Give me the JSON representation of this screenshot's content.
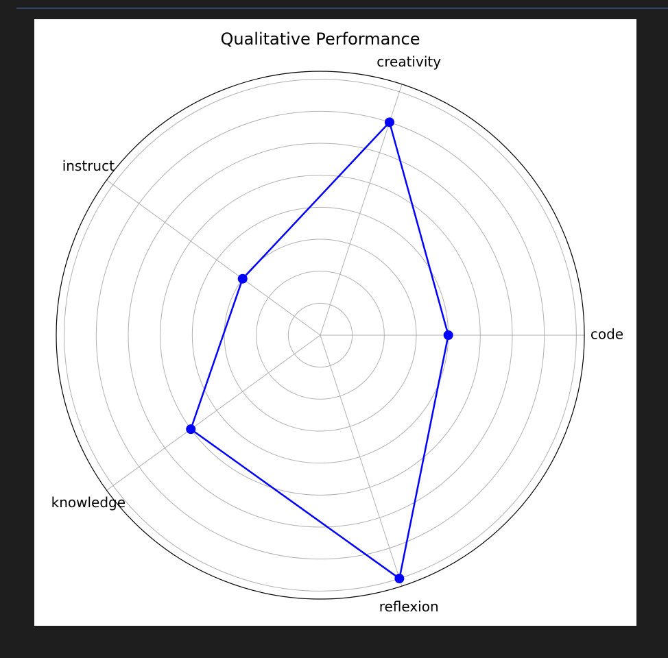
{
  "chart_data": {
    "type": "radar",
    "title": "Qualitative Performance",
    "categories": [
      "code",
      "creativity",
      "instruct",
      "knowledge",
      "reflexion"
    ],
    "values": [
      4,
      7,
      3,
      5,
      8
    ],
    "color": "#0000ff",
    "ylim": [
      0,
      8.25
    ],
    "yticks": [
      1,
      2,
      3,
      4,
      5,
      6,
      7,
      8
    ],
    "grid": true
  }
}
